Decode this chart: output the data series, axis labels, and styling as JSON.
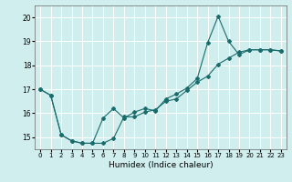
{
  "xlabel": "Humidex (Indice chaleur)",
  "bg_color": "#d0eeee",
  "line_color": "#1a6b6b",
  "grid_color": "#ffffff",
  "xlim": [
    -0.5,
    23.5
  ],
  "ylim": [
    14.5,
    20.5
  ],
  "yticks": [
    15,
    16,
    17,
    18,
    19,
    20
  ],
  "xticks": [
    0,
    1,
    2,
    3,
    4,
    5,
    6,
    7,
    8,
    9,
    10,
    11,
    12,
    13,
    14,
    15,
    16,
    17,
    18,
    19,
    20,
    21,
    22,
    23
  ],
  "line1_x": [
    0,
    1,
    2,
    3,
    4,
    5,
    6,
    7,
    8,
    9,
    10,
    11,
    12,
    13,
    14,
    15,
    16,
    17,
    18,
    19,
    20,
    21,
    22,
    23
  ],
  "line1_y": [
    17.0,
    16.75,
    15.1,
    14.85,
    14.75,
    14.75,
    14.75,
    14.95,
    15.85,
    15.85,
    16.05,
    16.15,
    16.5,
    16.6,
    16.95,
    17.3,
    17.55,
    18.05,
    18.3,
    18.55,
    18.65,
    18.65,
    18.65,
    18.6
  ],
  "line2_x": [
    0,
    1,
    2,
    3,
    4,
    5,
    6,
    7,
    8,
    9,
    10,
    11,
    12,
    13,
    14,
    15,
    16,
    17,
    18,
    19,
    20,
    21,
    22,
    23
  ],
  "line2_y": [
    17.0,
    16.75,
    15.1,
    14.85,
    14.75,
    14.75,
    15.8,
    16.2,
    15.8,
    16.05,
    16.2,
    16.1,
    16.6,
    16.8,
    17.05,
    17.45,
    18.95,
    20.05,
    19.0,
    18.45,
    18.65,
    18.65,
    18.65,
    18.6
  ]
}
